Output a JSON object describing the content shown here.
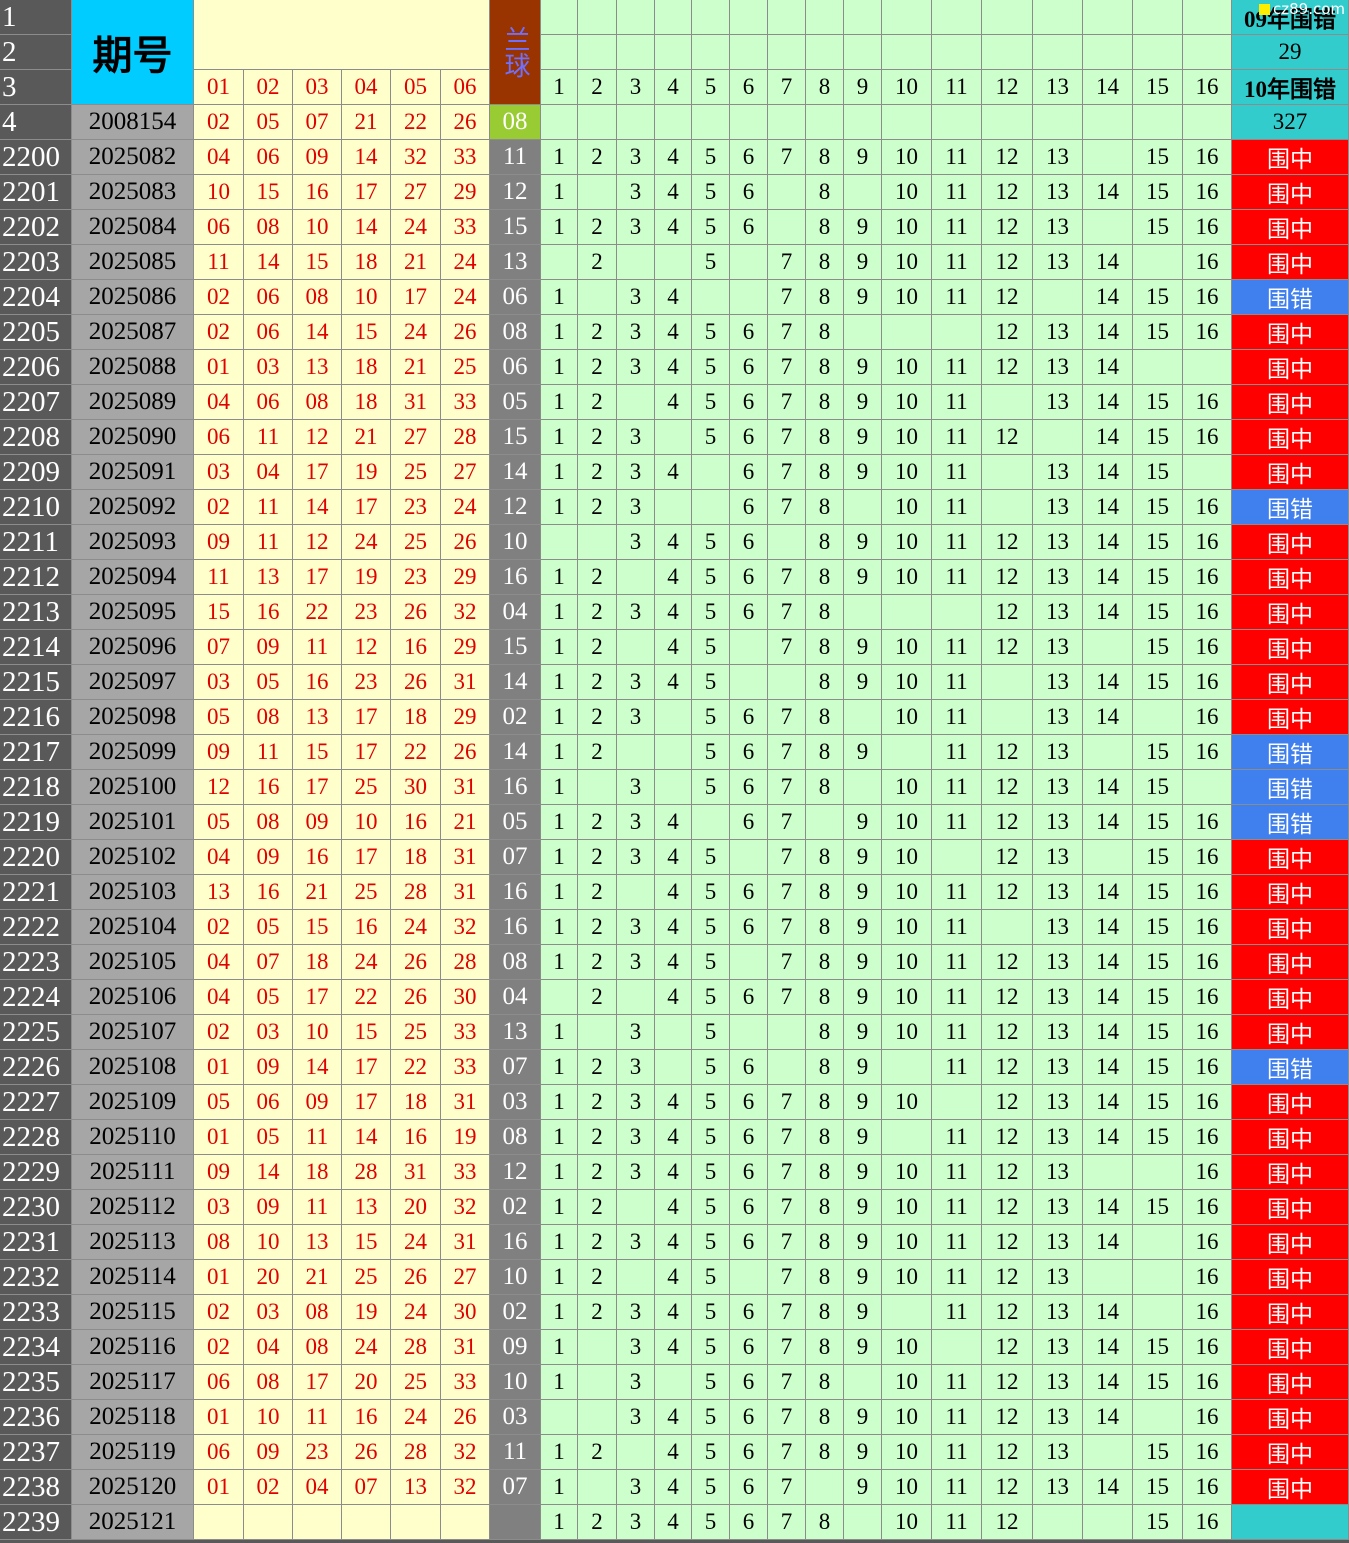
{
  "header": {
    "row_numbers": [
      "1",
      "2",
      "3",
      "4"
    ],
    "period_label": "期号",
    "blue_label": "兰球",
    "red_labels": [
      "01",
      "02",
      "03",
      "04",
      "05",
      "06"
    ],
    "numbers": [
      "1",
      "2",
      "3",
      "4",
      "5",
      "6",
      "7",
      "8",
      "9",
      "10",
      "11",
      "12",
      "13",
      "14",
      "15",
      "16"
    ],
    "result_labels": [
      "09年围错",
      "29",
      "10年围错",
      "327"
    ],
    "ref_period": "2008154",
    "ref_reds": [
      "02",
      "05",
      "07",
      "21",
      "22",
      "26"
    ],
    "ref_blue": "08",
    "watermark": "cz89.com"
  },
  "rows": [
    {
      "no": "2200",
      "period": "2025082",
      "reds": [
        "04",
        "06",
        "09",
        "14",
        "32",
        "33"
      ],
      "blue": "11",
      "hits": [
        1,
        2,
        3,
        4,
        5,
        6,
        7,
        8,
        9,
        10,
        11,
        12,
        13,
        null,
        15,
        16
      ],
      "result": "围中",
      "result_color": "#ff0000"
    },
    {
      "no": "2201",
      "period": "2025083",
      "reds": [
        "10",
        "15",
        "16",
        "17",
        "27",
        "29"
      ],
      "blue": "12",
      "hits": [
        1,
        null,
        3,
        4,
        5,
        6,
        null,
        8,
        null,
        10,
        11,
        12,
        13,
        14,
        15,
        16
      ],
      "result": "围中",
      "result_color": "#ff0000"
    },
    {
      "no": "2202",
      "period": "2025084",
      "reds": [
        "06",
        "08",
        "10",
        "14",
        "24",
        "33"
      ],
      "blue": "15",
      "hits": [
        1,
        2,
        3,
        4,
        5,
        6,
        null,
        8,
        9,
        10,
        11,
        12,
        13,
        null,
        15,
        16
      ],
      "result": "围中",
      "result_color": "#ff0000"
    },
    {
      "no": "2203",
      "period": "2025085",
      "reds": [
        "11",
        "14",
        "15",
        "18",
        "21",
        "24"
      ],
      "blue": "13",
      "hits": [
        null,
        2,
        null,
        null,
        5,
        null,
        7,
        8,
        9,
        10,
        11,
        12,
        13,
        14,
        null,
        16
      ],
      "result": "围中",
      "result_color": "#ff0000"
    },
    {
      "no": "2204",
      "period": "2025086",
      "reds": [
        "02",
        "06",
        "08",
        "10",
        "17",
        "24"
      ],
      "blue": "06",
      "hits": [
        1,
        null,
        3,
        4,
        null,
        null,
        7,
        8,
        9,
        10,
        11,
        12,
        null,
        14,
        15,
        16
      ],
      "result": "围错",
      "result_color": "#3f7fee"
    },
    {
      "no": "2205",
      "period": "2025087",
      "reds": [
        "02",
        "06",
        "14",
        "15",
        "24",
        "26"
      ],
      "blue": "08",
      "hits": [
        1,
        2,
        3,
        4,
        5,
        6,
        7,
        8,
        null,
        null,
        null,
        12,
        13,
        14,
        15,
        16
      ],
      "result": "围中",
      "result_color": "#ff0000"
    },
    {
      "no": "2206",
      "period": "2025088",
      "reds": [
        "01",
        "03",
        "13",
        "18",
        "21",
        "25"
      ],
      "blue": "06",
      "hits": [
        1,
        2,
        3,
        4,
        5,
        6,
        7,
        8,
        9,
        10,
        11,
        12,
        13,
        14,
        null,
        null
      ],
      "result": "围中",
      "result_color": "#ff0000"
    },
    {
      "no": "2207",
      "period": "2025089",
      "reds": [
        "04",
        "06",
        "08",
        "18",
        "31",
        "33"
      ],
      "blue": "05",
      "hits": [
        1,
        2,
        null,
        4,
        5,
        6,
        7,
        8,
        9,
        10,
        11,
        null,
        13,
        14,
        15,
        16
      ],
      "result": "围中",
      "result_color": "#ff0000"
    },
    {
      "no": "2208",
      "period": "2025090",
      "reds": [
        "06",
        "11",
        "12",
        "21",
        "27",
        "28"
      ],
      "blue": "15",
      "hits": [
        1,
        2,
        3,
        null,
        5,
        6,
        7,
        8,
        9,
        10,
        11,
        12,
        null,
        14,
        15,
        16
      ],
      "result": "围中",
      "result_color": "#ff0000"
    },
    {
      "no": "2209",
      "period": "2025091",
      "reds": [
        "03",
        "04",
        "17",
        "19",
        "25",
        "27"
      ],
      "blue": "14",
      "hits": [
        1,
        2,
        3,
        4,
        null,
        6,
        7,
        8,
        9,
        10,
        11,
        null,
        13,
        14,
        15,
        null
      ],
      "result": "围中",
      "result_color": "#ff0000"
    },
    {
      "no": "2210",
      "period": "2025092",
      "reds": [
        "02",
        "11",
        "14",
        "17",
        "23",
        "24"
      ],
      "blue": "12",
      "hits": [
        1,
        2,
        3,
        null,
        null,
        6,
        7,
        8,
        null,
        10,
        11,
        null,
        13,
        14,
        15,
        16
      ],
      "result": "围错",
      "result_color": "#3f7fee"
    },
    {
      "no": "2211",
      "period": "2025093",
      "reds": [
        "09",
        "11",
        "12",
        "24",
        "25",
        "26"
      ],
      "blue": "10",
      "hits": [
        null,
        null,
        3,
        4,
        5,
        6,
        null,
        8,
        9,
        10,
        11,
        12,
        13,
        14,
        15,
        16
      ],
      "result": "围中",
      "result_color": "#ff0000"
    },
    {
      "no": "2212",
      "period": "2025094",
      "reds": [
        "11",
        "13",
        "17",
        "19",
        "23",
        "29"
      ],
      "blue": "16",
      "hits": [
        1,
        2,
        null,
        4,
        5,
        6,
        7,
        8,
        9,
        10,
        11,
        12,
        13,
        14,
        15,
        16
      ],
      "result": "围中",
      "result_color": "#ff0000"
    },
    {
      "no": "2213",
      "period": "2025095",
      "reds": [
        "15",
        "16",
        "22",
        "23",
        "26",
        "32"
      ],
      "blue": "04",
      "hits": [
        1,
        2,
        3,
        4,
        5,
        6,
        7,
        8,
        null,
        null,
        null,
        12,
        13,
        14,
        15,
        16
      ],
      "result": "围中",
      "result_color": "#ff0000"
    },
    {
      "no": "2214",
      "period": "2025096",
      "reds": [
        "07",
        "09",
        "11",
        "12",
        "16",
        "29"
      ],
      "blue": "15",
      "hits": [
        1,
        2,
        null,
        4,
        5,
        null,
        7,
        8,
        9,
        10,
        11,
        12,
        13,
        null,
        15,
        16
      ],
      "result": "围中",
      "result_color": "#ff0000"
    },
    {
      "no": "2215",
      "period": "2025097",
      "reds": [
        "03",
        "05",
        "16",
        "23",
        "26",
        "31"
      ],
      "blue": "14",
      "hits": [
        1,
        2,
        3,
        4,
        5,
        null,
        null,
        8,
        9,
        10,
        11,
        null,
        13,
        14,
        15,
        16
      ],
      "result": "围中",
      "result_color": "#ff0000"
    },
    {
      "no": "2216",
      "period": "2025098",
      "reds": [
        "05",
        "08",
        "13",
        "17",
        "18",
        "29"
      ],
      "blue": "02",
      "hits": [
        1,
        2,
        3,
        null,
        5,
        6,
        7,
        8,
        null,
        10,
        11,
        null,
        13,
        14,
        null,
        16
      ],
      "result": "围中",
      "result_color": "#ff0000"
    },
    {
      "no": "2217",
      "period": "2025099",
      "reds": [
        "09",
        "11",
        "15",
        "17",
        "22",
        "26"
      ],
      "blue": "14",
      "hits": [
        1,
        2,
        null,
        null,
        5,
        6,
        7,
        8,
        9,
        null,
        11,
        12,
        13,
        null,
        15,
        16
      ],
      "result": "围错",
      "result_color": "#3f7fee"
    },
    {
      "no": "2218",
      "period": "2025100",
      "reds": [
        "12",
        "16",
        "17",
        "25",
        "30",
        "31"
      ],
      "blue": "16",
      "hits": [
        1,
        null,
        3,
        null,
        5,
        6,
        7,
        8,
        null,
        10,
        11,
        12,
        13,
        14,
        15,
        null
      ],
      "result": "围错",
      "result_color": "#3f7fee"
    },
    {
      "no": "2219",
      "period": "2025101",
      "reds": [
        "05",
        "08",
        "09",
        "10",
        "16",
        "21"
      ],
      "blue": "05",
      "hits": [
        1,
        2,
        3,
        4,
        null,
        6,
        7,
        null,
        9,
        10,
        11,
        12,
        13,
        14,
        15,
        16
      ],
      "result": "围错",
      "result_color": "#3f7fee"
    },
    {
      "no": "2220",
      "period": "2025102",
      "reds": [
        "04",
        "09",
        "16",
        "17",
        "18",
        "31"
      ],
      "blue": "07",
      "hits": [
        1,
        2,
        3,
        4,
        5,
        null,
        7,
        8,
        9,
        10,
        null,
        12,
        13,
        null,
        15,
        16
      ],
      "result": "围中",
      "result_color": "#ff0000"
    },
    {
      "no": "2221",
      "period": "2025103",
      "reds": [
        "13",
        "16",
        "21",
        "25",
        "28",
        "31"
      ],
      "blue": "16",
      "hits": [
        1,
        2,
        null,
        4,
        5,
        6,
        7,
        8,
        9,
        10,
        11,
        12,
        13,
        14,
        15,
        16
      ],
      "result": "围中",
      "result_color": "#ff0000"
    },
    {
      "no": "2222",
      "period": "2025104",
      "reds": [
        "02",
        "05",
        "15",
        "16",
        "24",
        "32"
      ],
      "blue": "16",
      "hits": [
        1,
        2,
        3,
        4,
        5,
        6,
        7,
        8,
        9,
        10,
        11,
        null,
        13,
        14,
        15,
        16
      ],
      "result": "围中",
      "result_color": "#ff0000"
    },
    {
      "no": "2223",
      "period": "2025105",
      "reds": [
        "04",
        "07",
        "18",
        "24",
        "26",
        "28"
      ],
      "blue": "08",
      "hits": [
        1,
        2,
        3,
        4,
        5,
        null,
        7,
        8,
        9,
        10,
        11,
        12,
        13,
        14,
        15,
        16
      ],
      "result": "围中",
      "result_color": "#ff0000"
    },
    {
      "no": "2224",
      "period": "2025106",
      "reds": [
        "04",
        "05",
        "17",
        "22",
        "26",
        "30"
      ],
      "blue": "04",
      "hits": [
        null,
        2,
        null,
        4,
        5,
        6,
        7,
        8,
        9,
        10,
        11,
        12,
        13,
        14,
        15,
        16
      ],
      "result": "围中",
      "result_color": "#ff0000"
    },
    {
      "no": "2225",
      "period": "2025107",
      "reds": [
        "02",
        "03",
        "10",
        "15",
        "25",
        "33"
      ],
      "blue": "13",
      "hits": [
        1,
        null,
        3,
        null,
        5,
        null,
        null,
        8,
        9,
        10,
        11,
        12,
        13,
        14,
        15,
        16
      ],
      "result": "围中",
      "result_color": "#ff0000"
    },
    {
      "no": "2226",
      "period": "2025108",
      "reds": [
        "01",
        "09",
        "14",
        "17",
        "22",
        "33"
      ],
      "blue": "07",
      "hits": [
        1,
        2,
        3,
        null,
        5,
        6,
        null,
        8,
        9,
        null,
        11,
        12,
        13,
        14,
        15,
        16
      ],
      "result": "围错",
      "result_color": "#3f7fee"
    },
    {
      "no": "2227",
      "period": "2025109",
      "reds": [
        "05",
        "06",
        "09",
        "17",
        "18",
        "31"
      ],
      "blue": "03",
      "hits": [
        1,
        2,
        3,
        4,
        5,
        6,
        7,
        8,
        9,
        10,
        null,
        12,
        13,
        14,
        15,
        16
      ],
      "result": "围中",
      "result_color": "#ff0000"
    },
    {
      "no": "2228",
      "period": "2025110",
      "reds": [
        "01",
        "05",
        "11",
        "14",
        "16",
        "19"
      ],
      "blue": "08",
      "hits": [
        1,
        2,
        3,
        4,
        5,
        6,
        7,
        8,
        9,
        null,
        11,
        12,
        13,
        14,
        15,
        16
      ],
      "result": "围中",
      "result_color": "#ff0000"
    },
    {
      "no": "2229",
      "period": "2025111",
      "reds": [
        "09",
        "14",
        "18",
        "28",
        "31",
        "33"
      ],
      "blue": "12",
      "hits": [
        1,
        2,
        3,
        4,
        5,
        6,
        7,
        8,
        9,
        10,
        11,
        12,
        13,
        null,
        null,
        16
      ],
      "result": "围中",
      "result_color": "#ff0000"
    },
    {
      "no": "2230",
      "period": "2025112",
      "reds": [
        "03",
        "09",
        "11",
        "13",
        "20",
        "32"
      ],
      "blue": "02",
      "hits": [
        1,
        2,
        null,
        4,
        5,
        6,
        7,
        8,
        9,
        10,
        11,
        12,
        13,
        14,
        15,
        16
      ],
      "result": "围中",
      "result_color": "#ff0000"
    },
    {
      "no": "2231",
      "period": "2025113",
      "reds": [
        "08",
        "10",
        "13",
        "15",
        "24",
        "31"
      ],
      "blue": "16",
      "hits": [
        1,
        2,
        3,
        4,
        5,
        6,
        7,
        8,
        9,
        10,
        11,
        12,
        13,
        14,
        null,
        16
      ],
      "result": "围中",
      "result_color": "#ff0000"
    },
    {
      "no": "2232",
      "period": "2025114",
      "reds": [
        "01",
        "20",
        "21",
        "25",
        "26",
        "27"
      ],
      "blue": "10",
      "hits": [
        1,
        2,
        null,
        4,
        5,
        null,
        7,
        8,
        9,
        10,
        11,
        12,
        13,
        null,
        null,
        16
      ],
      "result": "围中",
      "result_color": "#ff0000"
    },
    {
      "no": "2233",
      "period": "2025115",
      "reds": [
        "02",
        "03",
        "08",
        "19",
        "24",
        "30"
      ],
      "blue": "02",
      "hits": [
        1,
        2,
        3,
        4,
        5,
        6,
        7,
        8,
        9,
        null,
        11,
        12,
        13,
        14,
        null,
        16
      ],
      "result": "围中",
      "result_color": "#ff0000"
    },
    {
      "no": "2234",
      "period": "2025116",
      "reds": [
        "02",
        "04",
        "08",
        "24",
        "28",
        "31"
      ],
      "blue": "09",
      "hits": [
        1,
        null,
        3,
        4,
        5,
        6,
        7,
        8,
        9,
        10,
        null,
        12,
        13,
        14,
        15,
        16
      ],
      "result": "围中",
      "result_color": "#ff0000"
    },
    {
      "no": "2235",
      "period": "2025117",
      "reds": [
        "06",
        "08",
        "17",
        "20",
        "25",
        "33"
      ],
      "blue": "10",
      "hits": [
        1,
        null,
        3,
        null,
        5,
        6,
        7,
        8,
        null,
        10,
        11,
        12,
        13,
        14,
        15,
        16
      ],
      "result": "围中",
      "result_color": "#ff0000"
    },
    {
      "no": "2236",
      "period": "2025118",
      "reds": [
        "01",
        "10",
        "11",
        "16",
        "24",
        "26"
      ],
      "blue": "03",
      "hits": [
        null,
        null,
        3,
        4,
        5,
        6,
        7,
        8,
        9,
        10,
        11,
        12,
        13,
        14,
        null,
        16
      ],
      "result": "围中",
      "result_color": "#ff0000"
    },
    {
      "no": "2237",
      "period": "2025119",
      "reds": [
        "06",
        "09",
        "23",
        "26",
        "28",
        "32"
      ],
      "blue": "11",
      "hits": [
        1,
        2,
        null,
        4,
        5,
        6,
        7,
        8,
        9,
        10,
        11,
        12,
        13,
        null,
        15,
        16
      ],
      "result": "围中",
      "result_color": "#ff0000"
    },
    {
      "no": "2238",
      "period": "2025120",
      "reds": [
        "01",
        "02",
        "04",
        "07",
        "13",
        "32"
      ],
      "blue": "07",
      "hits": [
        1,
        null,
        3,
        4,
        5,
        6,
        7,
        null,
        9,
        10,
        11,
        12,
        13,
        14,
        15,
        16
      ],
      "result": "围中",
      "result_color": "#ff0000"
    },
    {
      "no": "2239",
      "period": "2025121",
      "reds": [],
      "blue": null,
      "hits": [
        1,
        2,
        3,
        4,
        5,
        6,
        7,
        8,
        null,
        10,
        11,
        12,
        null,
        null,
        15,
        16
      ],
      "result": null,
      "result_color": null
    }
  ]
}
